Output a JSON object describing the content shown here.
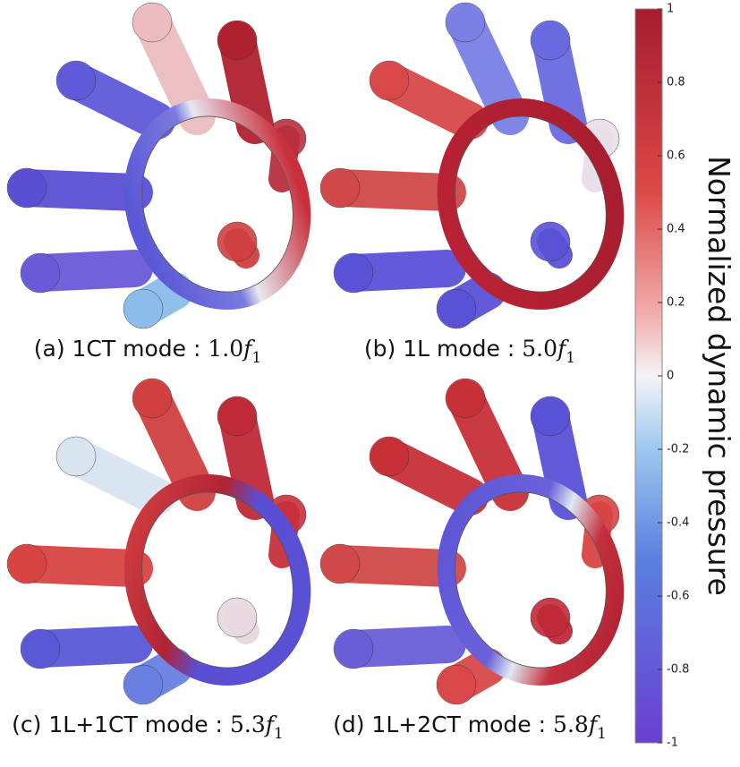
{
  "panels": [
    {
      "caption": "(a) 1CT mode :",
      "factor": "1.0",
      "symbol": "f",
      "subscript": "1"
    },
    {
      "caption": "(b) 1L mode :",
      "factor": "5.0",
      "symbol": "f",
      "subscript": "1"
    },
    {
      "caption": "(c) 1L+1CT mode :",
      "factor": "5.3",
      "symbol": "f",
      "subscript": "1"
    },
    {
      "caption": "(d) 1L+2CT mode :",
      "factor": "5.8",
      "symbol": "f",
      "subscript": "1"
    }
  ],
  "colorbar": {
    "label": "Normalized dynamic pressure",
    "ticks": [
      1,
      0.8,
      0.6,
      0.4,
      0.2,
      0,
      -0.2,
      -0.4,
      -0.6,
      -0.8,
      -1
    ]
  }
}
